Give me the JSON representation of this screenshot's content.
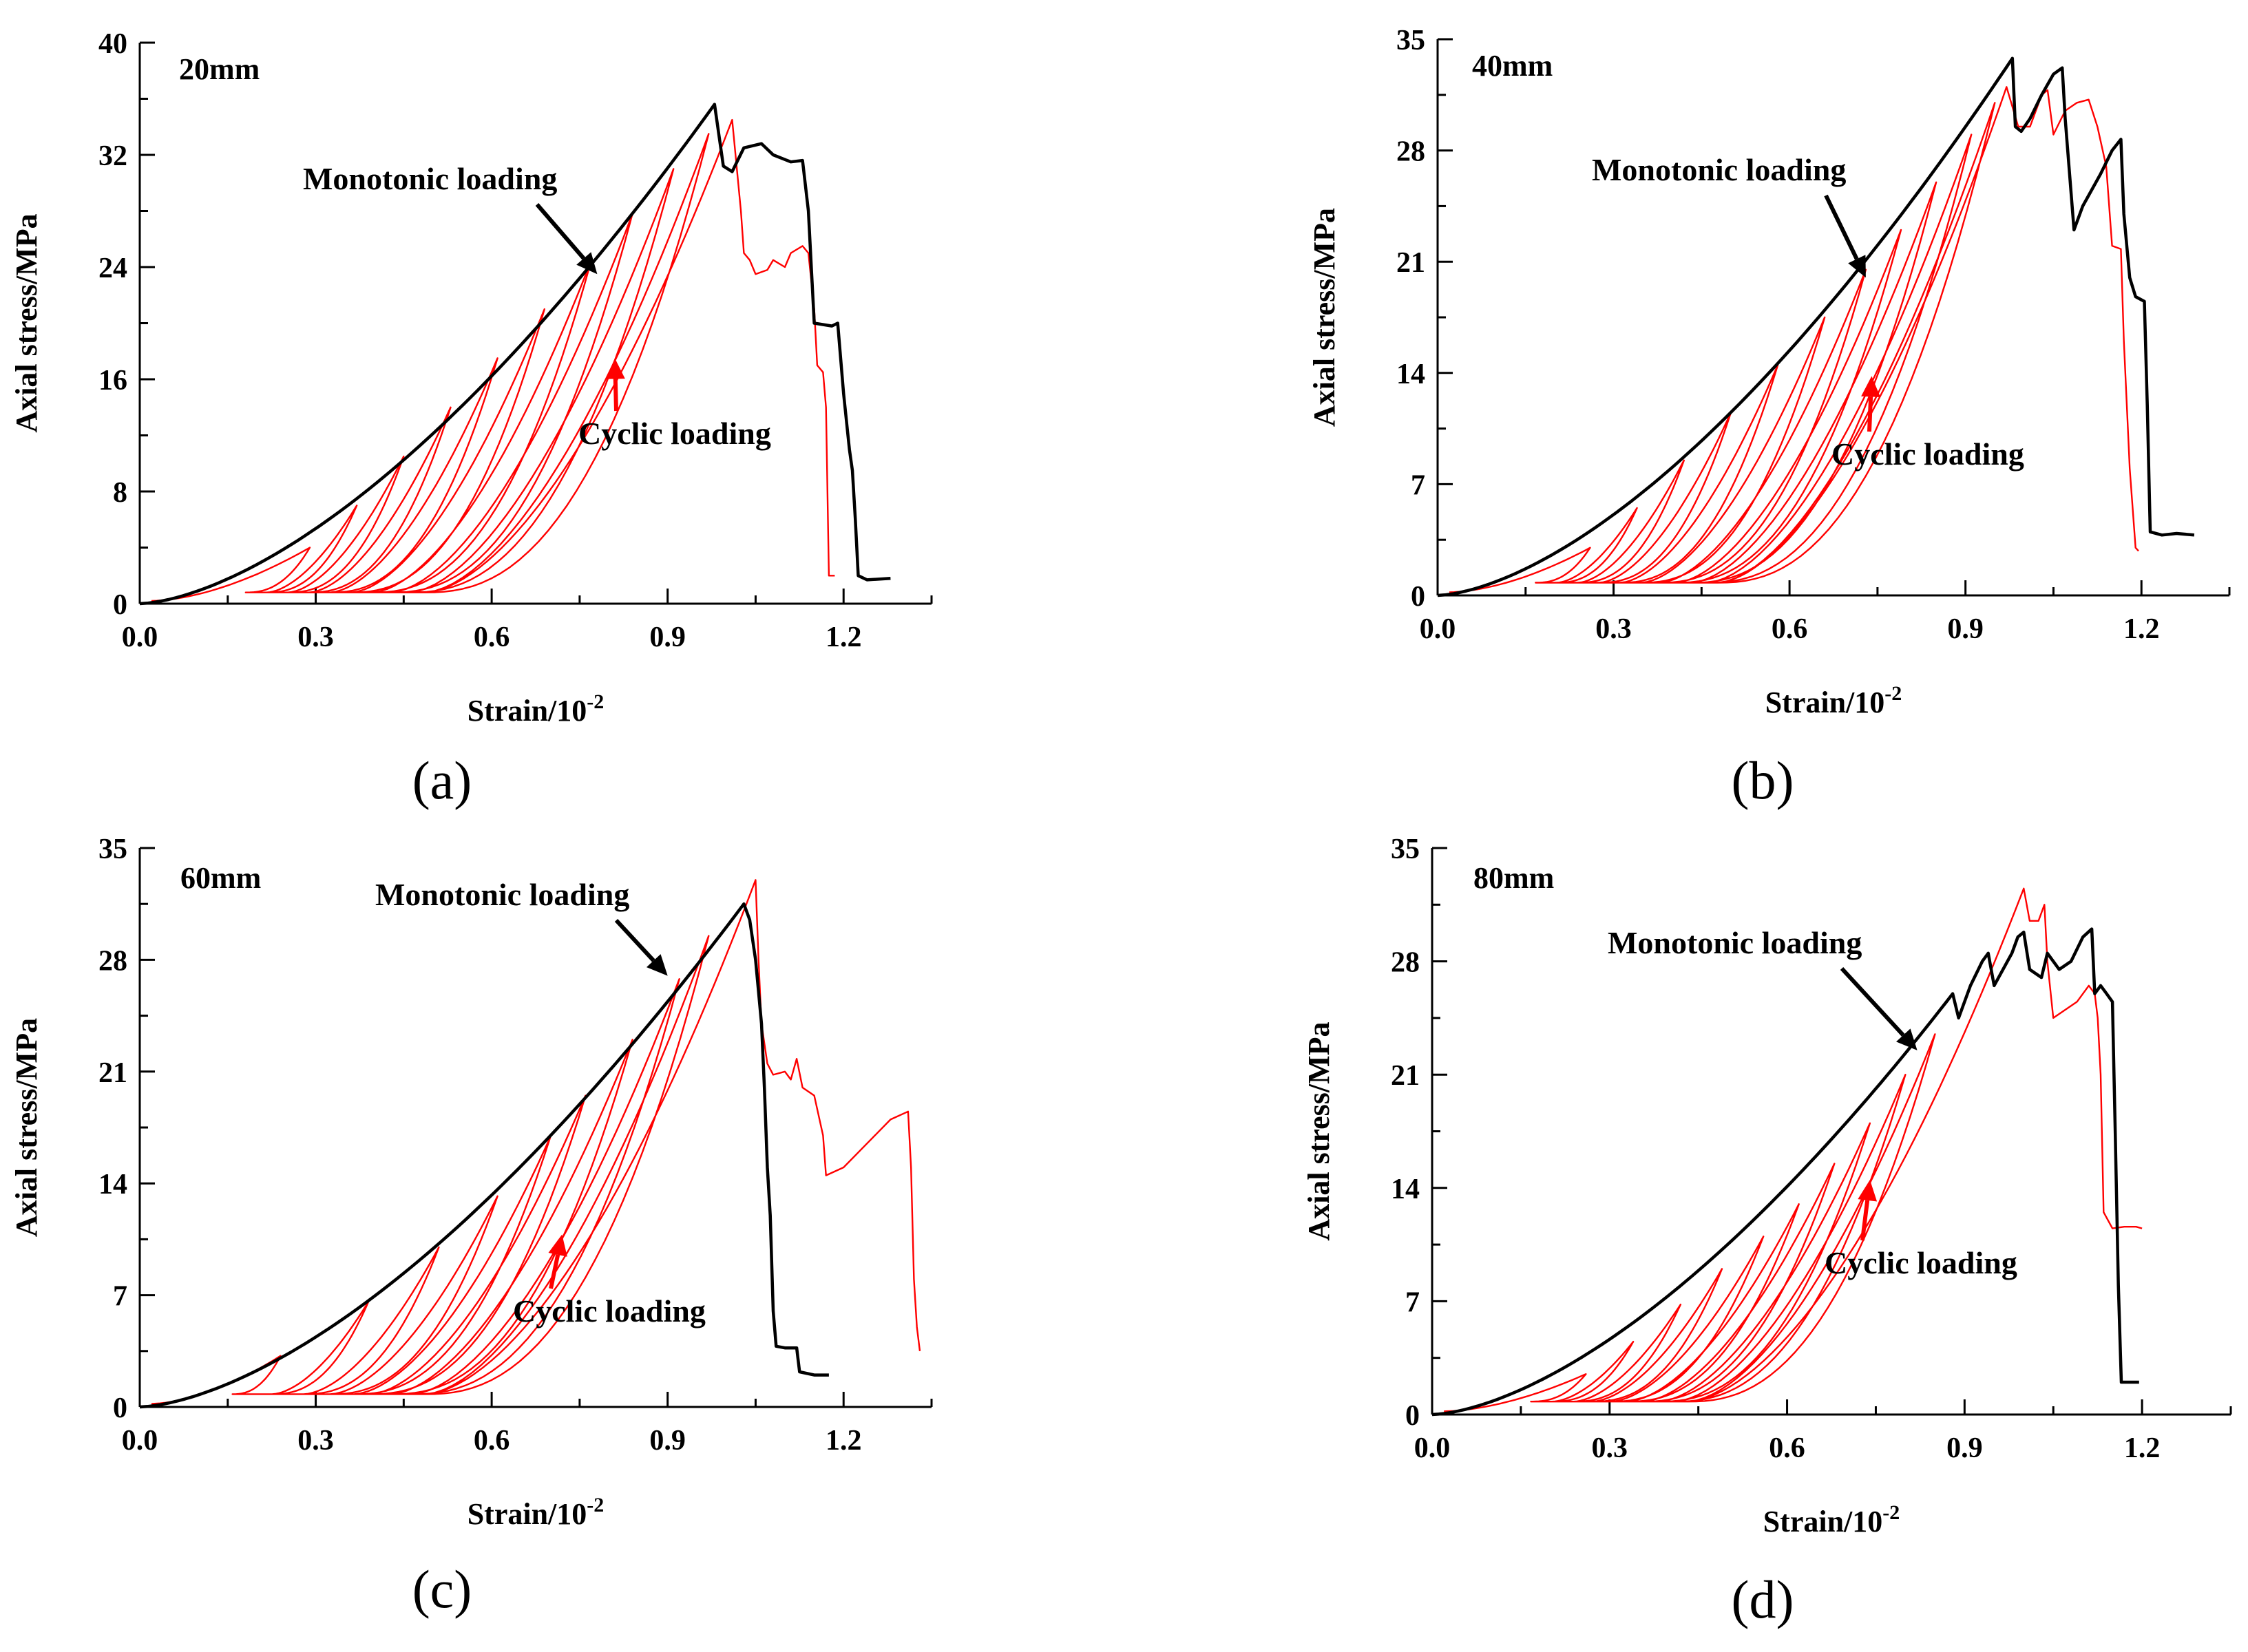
{
  "figure": {
    "panel_labels": [
      "(a)",
      "(b)",
      "(c)",
      "(d)"
    ]
  },
  "colors": {
    "monotonic": "#000000",
    "cyclic": "#ff0000",
    "axis": "#000000",
    "background": "#ffffff"
  },
  "chart_data": [
    {
      "type": "line",
      "panel": "(a)",
      "specimen_label": "20mm",
      "xlabel": "Strain/10",
      "xlabel_exponent": "-2",
      "ylabel": "Axial stress/MPa",
      "xlim": [
        0,
        1.35
      ],
      "ylim": [
        0,
        40
      ],
      "xticks": [
        "0.0",
        "0.3",
        "0.6",
        "0.9",
        "1.2"
      ],
      "xtick_values": [
        0,
        0.3,
        0.6,
        0.9,
        1.2
      ],
      "yticks": [
        "0",
        "8",
        "16",
        "24",
        "32",
        "40"
      ],
      "ytick_values": [
        0,
        8,
        16,
        24,
        32,
        40
      ],
      "series": [
        {
          "name": "Monotonic loading",
          "color": "#000000",
          "kind": "monotonic",
          "peak_strain": 0.98,
          "peak_stress": 35.6,
          "post_peak": [
            [
              0.98,
              35.6
            ],
            [
              0.995,
              31.2
            ],
            [
              1.01,
              30.8
            ],
            [
              1.03,
              32.5
            ],
            [
              1.06,
              32.8
            ],
            [
              1.08,
              32.0
            ],
            [
              1.11,
              31.5
            ],
            [
              1.13,
              31.6
            ],
            [
              1.14,
              28.0
            ],
            [
              1.15,
              20.0
            ],
            [
              1.18,
              19.8
            ],
            [
              1.19,
              20.0
            ],
            [
              1.2,
              15.0
            ],
            [
              1.21,
              11.0
            ],
            [
              1.215,
              9.5
            ],
            [
              1.22,
              6.0
            ],
            [
              1.225,
              2.0
            ],
            [
              1.24,
              1.7
            ],
            [
              1.28,
              1.8
            ]
          ]
        },
        {
          "name": "Cyclic loading",
          "color": "#ff0000",
          "kind": "cyclic",
          "peak_strain": 1.01,
          "peak_stress": 34.5,
          "cycles": [
            [
              0.29,
              4.0
            ],
            [
              0.37,
              7.0
            ],
            [
              0.45,
              10.5
            ],
            [
              0.53,
              14.0
            ],
            [
              0.61,
              17.5
            ],
            [
              0.69,
              21.0
            ],
            [
              0.77,
              24.5
            ],
            [
              0.84,
              27.8
            ],
            [
              0.91,
              31.0
            ],
            [
              0.97,
              33.5
            ]
          ],
          "post_peak": [
            [
              1.01,
              34.5
            ],
            [
              1.025,
              28.0
            ],
            [
              1.03,
              25.0
            ],
            [
              1.04,
              24.5
            ],
            [
              1.05,
              23.5
            ],
            [
              1.07,
              23.8
            ],
            [
              1.08,
              24.5
            ],
            [
              1.1,
              24.0
            ],
            [
              1.11,
              25.0
            ],
            [
              1.13,
              25.5
            ],
            [
              1.14,
              25.0
            ],
            [
              1.15,
              21.0
            ],
            [
              1.155,
              17.0
            ],
            [
              1.165,
              16.5
            ],
            [
              1.17,
              14.0
            ],
            [
              1.175,
              2.0
            ],
            [
              1.185,
              2.0
            ]
          ]
        }
      ],
      "annotations": [
        {
          "text": "Monotonic loading",
          "target_strain": 0.78,
          "target_stress": 23.5,
          "color": "#000000"
        },
        {
          "text": "Cyclic loading",
          "target_strain": 0.81,
          "target_stress": 17.5,
          "color": "#ff0000"
        }
      ]
    },
    {
      "type": "line",
      "panel": "(b)",
      "specimen_label": "40mm",
      "xlabel": "Strain/10",
      "xlabel_exponent": "-2",
      "ylabel": "Axial stress/MPa",
      "xlim": [
        0,
        1.35
      ],
      "ylim": [
        0,
        35
      ],
      "xticks": [
        "0.0",
        "0.3",
        "0.6",
        "0.9",
        "1.2"
      ],
      "xtick_values": [
        0,
        0.3,
        0.6,
        0.9,
        1.2
      ],
      "yticks": [
        "0",
        "7",
        "14",
        "21",
        "28",
        "35"
      ],
      "ytick_values": [
        0,
        7,
        14,
        21,
        28,
        35
      ],
      "series": [
        {
          "name": "Monotonic loading",
          "color": "#000000",
          "kind": "monotonic",
          "peak_strain": 0.98,
          "peak_stress": 33.8,
          "post_peak": [
            [
              0.98,
              33.8
            ],
            [
              0.985,
              29.5
            ],
            [
              0.995,
              29.2
            ],
            [
              1.01,
              30.0
            ],
            [
              1.03,
              31.5
            ],
            [
              1.05,
              32.8
            ],
            [
              1.065,
              33.2
            ],
            [
              1.07,
              30.0
            ],
            [
              1.085,
              23.0
            ],
            [
              1.1,
              24.5
            ],
            [
              1.13,
              26.5
            ],
            [
              1.15,
              28.0
            ],
            [
              1.165,
              28.7
            ],
            [
              1.17,
              24.0
            ],
            [
              1.18,
              20.0
            ],
            [
              1.19,
              18.8
            ],
            [
              1.205,
              18.5
            ],
            [
              1.21,
              12.0
            ],
            [
              1.215,
              4.0
            ],
            [
              1.235,
              3.8
            ],
            [
              1.26,
              3.9
            ],
            [
              1.29,
              3.8
            ]
          ]
        },
        {
          "name": "Cyclic loading",
          "color": "#ff0000",
          "kind": "cyclic",
          "peak_strain": 0.97,
          "peak_stress": 32.0,
          "cycles": [
            [
              0.26,
              3.0
            ],
            [
              0.34,
              5.5
            ],
            [
              0.42,
              8.5
            ],
            [
              0.5,
              11.5
            ],
            [
              0.58,
              14.5
            ],
            [
              0.66,
              17.5
            ],
            [
              0.73,
              20.5
            ],
            [
              0.79,
              23.0
            ],
            [
              0.85,
              26.0
            ],
            [
              0.91,
              29.0
            ],
            [
              0.95,
              31.0
            ]
          ],
          "post_peak": [
            [
              0.97,
              32.0
            ],
            [
              0.99,
              29.5
            ],
            [
              1.01,
              29.5
            ],
            [
              1.03,
              31.5
            ],
            [
              1.04,
              31.8
            ],
            [
              1.05,
              29.0
            ],
            [
              1.07,
              30.5
            ],
            [
              1.09,
              31.0
            ],
            [
              1.11,
              31.2
            ],
            [
              1.125,
              29.5
            ],
            [
              1.14,
              27.0
            ],
            [
              1.15,
              22.0
            ],
            [
              1.165,
              21.8
            ],
            [
              1.17,
              16.0
            ],
            [
              1.18,
              8.0
            ],
            [
              1.19,
              3.0
            ],
            [
              1.195,
              2.8
            ]
          ]
        }
      ],
      "annotations": [
        {
          "text": "Monotonic loading",
          "target_strain": 0.73,
          "target_stress": 20.0,
          "color": "#000000"
        },
        {
          "text": "Cyclic loading",
          "target_strain": 0.74,
          "target_stress": 13.8,
          "color": "#ff0000"
        }
      ]
    },
    {
      "type": "line",
      "panel": "(c)",
      "specimen_label": "60mm",
      "xlabel": "Strain/10",
      "xlabel_exponent": "-2",
      "ylabel": "Axial stress/MPa",
      "xlim": [
        0,
        1.35
      ],
      "ylim": [
        0,
        35
      ],
      "xticks": [
        "0.0",
        "0.3",
        "0.6",
        "0.9",
        "1.2"
      ],
      "xtick_values": [
        0,
        0.3,
        0.6,
        0.9,
        1.2
      ],
      "yticks": [
        "0",
        "7",
        "14",
        "21",
        "28",
        "35"
      ],
      "ytick_values": [
        0,
        7,
        14,
        21,
        28,
        35
      ],
      "series": [
        {
          "name": "Monotonic loading",
          "color": "#000000",
          "kind": "monotonic",
          "peak_strain": 1.03,
          "peak_stress": 31.5,
          "post_peak": [
            [
              1.03,
              31.5
            ],
            [
              1.04,
              30.5
            ],
            [
              1.05,
              28.0
            ],
            [
              1.06,
              24.0
            ],
            [
              1.065,
              20.0
            ],
            [
              1.07,
              15.0
            ],
            [
              1.075,
              12.0
            ],
            [
              1.08,
              6.0
            ],
            [
              1.085,
              3.8
            ],
            [
              1.1,
              3.7
            ],
            [
              1.12,
              3.7
            ],
            [
              1.125,
              2.2
            ],
            [
              1.15,
              2.0
            ],
            [
              1.175,
              2.0
            ]
          ]
        },
        {
          "name": "Cyclic loading",
          "color": "#ff0000",
          "kind": "cyclic",
          "peak_strain": 1.05,
          "peak_stress": 33.0,
          "cycles": [
            [
              0.24,
              3.2
            ],
            [
              0.39,
              6.6
            ],
            [
              0.51,
              10.0
            ],
            [
              0.61,
              13.2
            ],
            [
              0.7,
              16.9
            ],
            [
              0.76,
              19.5
            ],
            [
              0.84,
              23.0
            ],
            [
              0.92,
              26.8
            ],
            [
              0.97,
              29.5
            ]
          ],
          "post_peak": [
            [
              1.05,
              33.0
            ],
            [
              1.055,
              28.0
            ],
            [
              1.06,
              24.0
            ],
            [
              1.07,
              21.5
            ],
            [
              1.08,
              20.8
            ],
            [
              1.1,
              21.0
            ],
            [
              1.11,
              20.5
            ],
            [
              1.12,
              21.8
            ],
            [
              1.13,
              20.0
            ],
            [
              1.15,
              19.5
            ],
            [
              1.165,
              17.0
            ],
            [
              1.17,
              14.5
            ],
            [
              1.2,
              15.0
            ],
            [
              1.24,
              16.5
            ],
            [
              1.28,
              18.0
            ],
            [
              1.31,
              18.5
            ],
            [
              1.315,
              15.0
            ],
            [
              1.32,
              8.0
            ],
            [
              1.325,
              5.0
            ],
            [
              1.33,
              3.5
            ]
          ]
        }
      ],
      "annotations": [
        {
          "text": "Monotonic loading",
          "target_strain": 0.9,
          "target_stress": 27.0,
          "color": "#000000"
        },
        {
          "text": "Cyclic loading",
          "target_strain": 0.72,
          "target_stress": 10.8,
          "color": "#ff0000"
        }
      ]
    },
    {
      "type": "line",
      "panel": "(d)",
      "specimen_label": "80mm",
      "xlabel": "Strain/10",
      "xlabel_exponent": "-2",
      "ylabel": "Axial stress/MPa",
      "xlim": [
        0,
        1.35
      ],
      "ylim": [
        0,
        35
      ],
      "xticks": [
        "0.0",
        "0.3",
        "0.6",
        "0.9",
        "1.2"
      ],
      "xtick_values": [
        0,
        0.3,
        0.6,
        0.9,
        1.2
      ],
      "yticks": [
        "0",
        "7",
        "14",
        "21",
        "28",
        "35"
      ],
      "ytick_values": [
        0,
        7,
        14,
        21,
        28,
        35
      ],
      "series": [
        {
          "name": "Monotonic loading",
          "color": "#000000",
          "kind": "monotonic",
          "peak_strain": 1.115,
          "peak_stress": 30.0,
          "post_peak": [
            [
              0.88,
              26.0
            ],
            [
              0.89,
              24.5
            ],
            [
              0.91,
              26.5
            ],
            [
              0.93,
              28.0
            ],
            [
              0.94,
              28.5
            ],
            [
              0.95,
              26.5
            ],
            [
              0.98,
              28.5
            ],
            [
              0.99,
              29.5
            ],
            [
              1.0,
              29.8
            ],
            [
              1.01,
              27.5
            ],
            [
              1.03,
              27.0
            ],
            [
              1.04,
              28.5
            ],
            [
              1.06,
              27.5
            ],
            [
              1.08,
              28.0
            ],
            [
              1.1,
              29.5
            ],
            [
              1.115,
              30.0
            ],
            [
              1.12,
              26.0
            ],
            [
              1.13,
              26.5
            ],
            [
              1.14,
              26.0
            ],
            [
              1.15,
              25.5
            ],
            [
              1.155,
              17.0
            ],
            [
              1.16,
              8.0
            ],
            [
              1.165,
              2.0
            ],
            [
              1.18,
              2.0
            ],
            [
              1.195,
              2.0
            ]
          ]
        },
        {
          "name": "Cyclic loading",
          "color": "#ff0000",
          "kind": "cyclic",
          "peak_strain": 1.0,
          "peak_stress": 32.5,
          "cycles": [
            [
              0.26,
              2.5
            ],
            [
              0.34,
              4.5
            ],
            [
              0.42,
              6.8
            ],
            [
              0.49,
              9.0
            ],
            [
              0.56,
              11.0
            ],
            [
              0.62,
              13.0
            ],
            [
              0.68,
              15.5
            ],
            [
              0.74,
              18.0
            ],
            [
              0.8,
              21.0
            ],
            [
              0.85,
              23.5
            ]
          ],
          "post_peak": [
            [
              1.0,
              32.5
            ],
            [
              1.01,
              30.5
            ],
            [
              1.025,
              30.5
            ],
            [
              1.035,
              31.5
            ],
            [
              1.04,
              28.0
            ],
            [
              1.05,
              24.5
            ],
            [
              1.07,
              25.0
            ],
            [
              1.09,
              25.5
            ],
            [
              1.11,
              26.5
            ],
            [
              1.12,
              26.0
            ],
            [
              1.125,
              24.5
            ],
            [
              1.13,
              21.0
            ],
            [
              1.135,
              12.5
            ],
            [
              1.15,
              11.5
            ],
            [
              1.17,
              11.6
            ],
            [
              1.19,
              11.6
            ],
            [
              1.2,
              11.5
            ]
          ]
        }
      ],
      "annotations": [
        {
          "text": "Monotonic loading",
          "target_strain": 0.82,
          "target_stress": 22.5,
          "color": "#000000"
        },
        {
          "text": "Cyclic loading",
          "target_strain": 0.74,
          "target_stress": 14.5,
          "color": "#ff0000"
        }
      ]
    }
  ]
}
